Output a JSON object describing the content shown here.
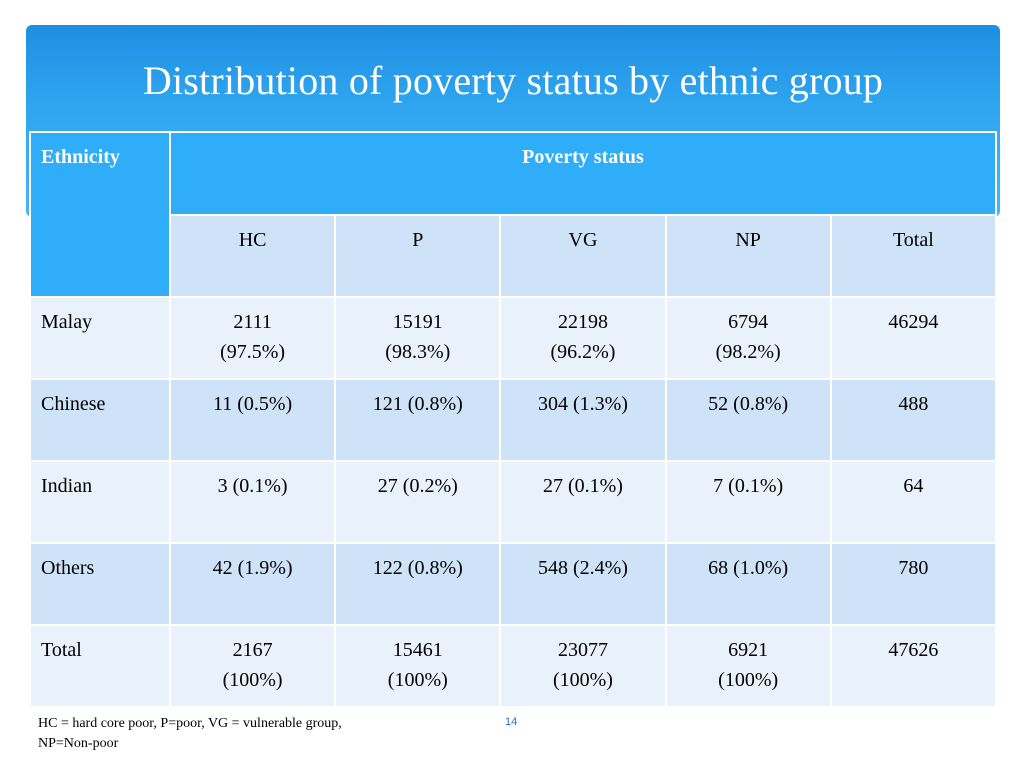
{
  "slide": {
    "title": "Distribution of poverty status by ethnic  group",
    "page_number": "14",
    "footnote_line1": "HC = hard core poor, P=poor, VG = vulnerable group,",
    "footnote_line2": "NP=Non-poor"
  },
  "table": {
    "header_ethnicity": "Ethnicity",
    "header_poverty_status": "Poverty status",
    "sub_headers": [
      "HC",
      "P",
      "VG",
      "NP",
      "Total"
    ],
    "rows": [
      {
        "ethnicity": "Malay",
        "cells": [
          {
            "line1": "2111",
            "line2": "(97.5%)"
          },
          {
            "line1": "15191",
            "line2": "(98.3%)"
          },
          {
            "line1": "22198",
            "line2": "(96.2%)"
          },
          {
            "line1": "6794",
            "line2": "(98.2%)"
          },
          {
            "line1": "46294",
            "line2": ""
          }
        ]
      },
      {
        "ethnicity": "Chinese",
        "cells": [
          {
            "line1": "11 (0.5%)",
            "line2": ""
          },
          {
            "line1": "121 (0.8%)",
            "line2": ""
          },
          {
            "line1": "304 (1.3%)",
            "line2": ""
          },
          {
            "line1": "52 (0.8%)",
            "line2": ""
          },
          {
            "line1": "488",
            "line2": ""
          }
        ]
      },
      {
        "ethnicity": "Indian",
        "cells": [
          {
            "line1": "3 (0.1%)",
            "line2": ""
          },
          {
            "line1": "27 (0.2%)",
            "line2": ""
          },
          {
            "line1": "27 (0.1%)",
            "line2": ""
          },
          {
            "line1": "7 (0.1%)",
            "line2": ""
          },
          {
            "line1": "64",
            "line2": ""
          }
        ]
      },
      {
        "ethnicity": "Others",
        "cells": [
          {
            "line1": "42 (1.9%)",
            "line2": ""
          },
          {
            "line1": "122 (0.8%)",
            "line2": ""
          },
          {
            "line1": "548 (2.4%)",
            "line2": ""
          },
          {
            "line1": "68 (1.0%)",
            "line2": ""
          },
          {
            "line1": "780",
            "line2": ""
          }
        ]
      },
      {
        "ethnicity": "Total",
        "cells": [
          {
            "line1": "2167",
            "line2": "(100%)"
          },
          {
            "line1": "15461",
            "line2": "(100%)"
          },
          {
            "line1": "23077",
            "line2": "(100%)"
          },
          {
            "line1": "6921",
            "line2": "(100%)"
          },
          {
            "line1": "47626",
            "line2": ""
          }
        ]
      }
    ]
  },
  "colors": {
    "title_band": "#2ea4ef",
    "header_fill": "#2fadf9",
    "row_light": "#e9f1fb",
    "row_dark": "#cfe3f8",
    "page_number": "#1e6fd9"
  }
}
